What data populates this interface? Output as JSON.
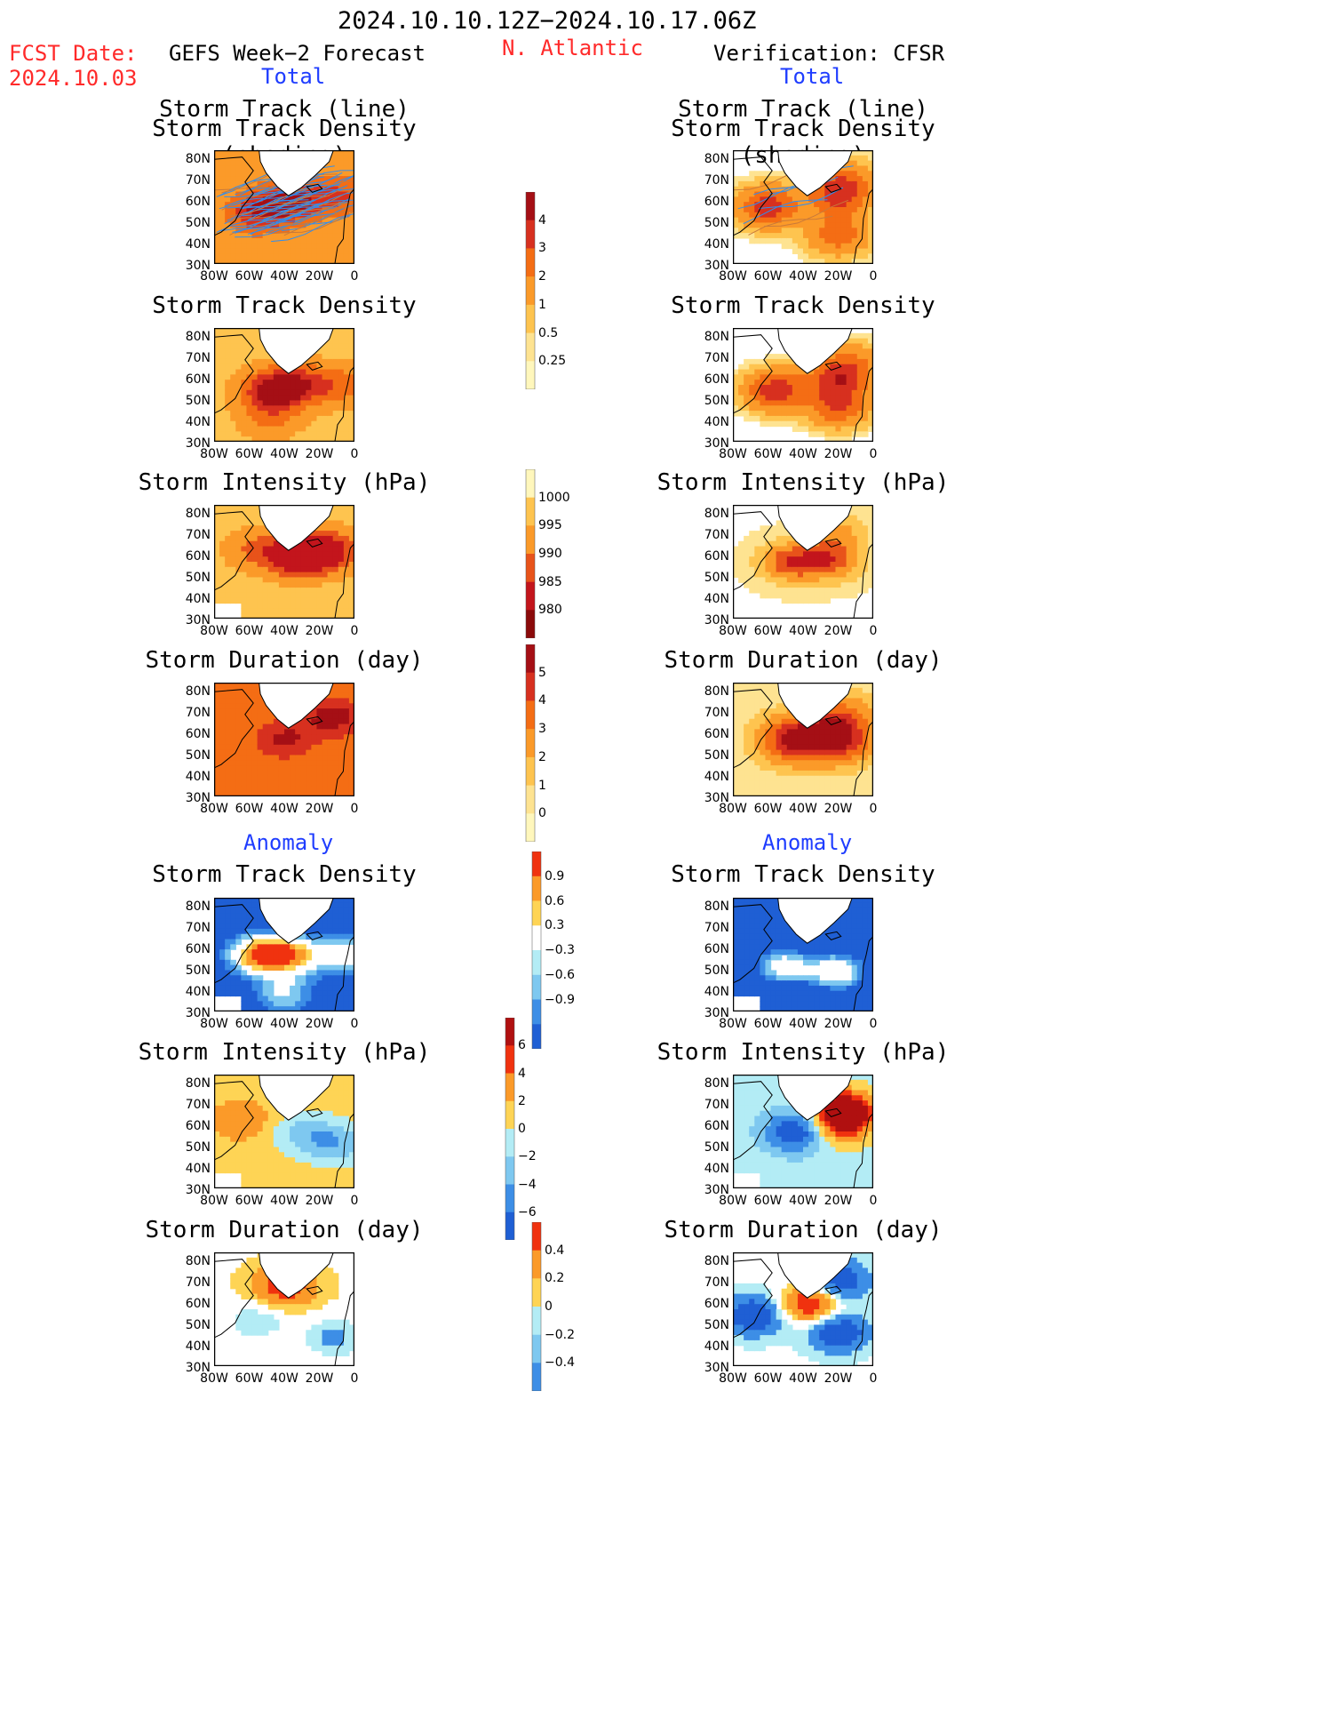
{
  "header": {
    "period": "2024.10.10.12Z−2024.10.17.06Z",
    "fcst_label": "FCST Date:",
    "fcst_date": "2024.10.03",
    "left_model": "GEFS Week−2 Forecast",
    "region": "N. Atlantic",
    "right_model": "Verification: CFSR",
    "left_total": "Total",
    "right_total": "Total",
    "left_anomaly": "Anomaly",
    "right_anomaly": "Anomaly"
  },
  "axes": {
    "lat_ticks": [
      "80N",
      "70N",
      "60N",
      "50N",
      "40N",
      "30N"
    ],
    "lon_ticks": [
      "80W",
      "60W",
      "40W",
      "20W",
      "0"
    ]
  },
  "panels": {
    "left": [
      {
        "title1": "Storm Track (line)",
        "title2": "Storm Track Density (shading)"
      },
      {
        "title1": "Storm Track Density"
      },
      {
        "title1": "Storm Intensity (hPa)"
      },
      {
        "title1": "Storm Duration (day)"
      },
      {
        "title1": "Storm Track Density"
      },
      {
        "title1": "Storm Intensity (hPa)"
      },
      {
        "title1": "Storm Duration (day)"
      }
    ],
    "right": [
      {
        "title1": "Storm Track (line)",
        "title2": "Storm Track Density (shading)"
      },
      {
        "title1": "Storm Track Density"
      },
      {
        "title1": "Storm Intensity (hPa)"
      },
      {
        "title1": "Storm Duration (day)"
      },
      {
        "title1": "Storm Track Density"
      },
      {
        "title1": "Storm Intensity (hPa)"
      },
      {
        "title1": "Storm Duration (day)"
      }
    ]
  },
  "colorbars": [
    {
      "labels": [
        "4",
        "3",
        "2",
        "1",
        "0.5",
        "0.25"
      ],
      "colors": [
        "#a50f15",
        "#d7301f",
        "#f46d14",
        "#fb9a29",
        "#fec44f",
        "#fee391",
        "#fff7bc"
      ]
    },
    {
      "labels": [
        "1000",
        "995",
        "990",
        "985",
        "980"
      ],
      "colors": [
        "#fff7bc",
        "#fec44f",
        "#fb9a29",
        "#e8531a",
        "#c3151c",
        "#8b0a0a"
      ]
    },
    {
      "labels": [
        "5",
        "4",
        "3",
        "2",
        "1",
        "0"
      ],
      "colors": [
        "#a50f15",
        "#d7301f",
        "#f46d14",
        "#fb9a29",
        "#fec44f",
        "#fee391",
        "#fff7bc"
      ]
    },
    {
      "labels": [
        "0.9",
        "0.6",
        "0.3",
        "−0.3",
        "−0.6",
        "−0.9"
      ],
      "colors": [
        "#f0320f",
        "#fb9a29",
        "#fed455",
        "#ffffff",
        "#b3ecf5",
        "#7ec8f0",
        "#3d8ee6",
        "#1f5fd4"
      ]
    },
    {
      "labels": [
        "6",
        "4",
        "2",
        "0",
        "−2",
        "−4",
        "−6"
      ],
      "colors": [
        "#b01010",
        "#f0320f",
        "#fb9a29",
        "#fed455",
        "#b3ecf5",
        "#7ec8f0",
        "#3d8ee6",
        "#1f5fd4"
      ]
    },
    {
      "labels": [
        "0.4",
        "0.2",
        "0",
        "−0.2",
        "−0.4"
      ],
      "colors": [
        "#f0320f",
        "#fb9a29",
        "#fed455",
        "#b3ecf5",
        "#7ec8f0",
        "#3d8ee6"
      ]
    }
  ],
  "fields": {
    "L0": {
      "ctr": [
        [
          0.55,
          0.45,
          3.2
        ],
        [
          0.3,
          0.55,
          2.6
        ],
        [
          0.9,
          0.4,
          1.8
        ]
      ],
      "base": 1.2,
      "pal": "seq"
    },
    "R0": {
      "ctr": [
        [
          0.25,
          0.5,
          3.5
        ],
        [
          0.75,
          0.4,
          3.0
        ],
        [
          0.75,
          0.75,
          2.5
        ],
        [
          0.8,
          0.25,
          1.5
        ]
      ],
      "base": 0.1,
      "pal": "seq"
    },
    "L1": {
      "ctr": [
        [
          0.4,
          0.55,
          3.4
        ],
        [
          0.6,
          0.5,
          2.6
        ],
        [
          0.9,
          0.5,
          1.8
        ],
        [
          0.4,
          0.8,
          1.4
        ]
      ],
      "base": 0.6,
      "pal": "seq"
    },
    "R1": {
      "ctr": [
        [
          0.3,
          0.55,
          3.6
        ],
        [
          0.75,
          0.45,
          3.0
        ],
        [
          0.75,
          0.7,
          2.8
        ],
        [
          0.85,
          0.3,
          1.6
        ]
      ],
      "base": 0.05,
      "pal": "seq"
    },
    "L2": {
      "ctr": [
        [
          0.6,
          0.45,
          3.5
        ],
        [
          0.8,
          0.4,
          3.0
        ],
        [
          0.3,
          0.4,
          1.5
        ]
      ],
      "base": 1.6,
      "pal": "int"
    },
    "R2": {
      "ctr": [
        [
          0.4,
          0.5,
          3.5
        ],
        [
          0.7,
          0.5,
          3.0
        ],
        [
          0.75,
          0.25,
          2.0
        ]
      ],
      "base": 0.2,
      "pal": "int"
    },
    "L3": {
      "ctr": [
        [
          0.5,
          0.5,
          2.2
        ],
        [
          0.85,
          0.3,
          2.6
        ]
      ],
      "base": 2.0,
      "pal": "seq"
    },
    "R3": {
      "ctr": [
        [
          0.45,
          0.5,
          4.5
        ],
        [
          0.75,
          0.5,
          4.0
        ],
        [
          0.75,
          0.3,
          2.0
        ]
      ],
      "base": 0.3,
      "pal": "seq"
    },
    "L4": {
      "ctr": [
        [
          0.3,
          0.5,
          2.2
        ],
        [
          0.55,
          0.5,
          2.0
        ],
        [
          0.95,
          0.5,
          1.6
        ],
        [
          0.5,
          0.85,
          1.2
        ]
      ],
      "base": -1.5,
      "pal": "div"
    },
    "R4": {
      "ctr": [
        [
          0.35,
          0.6,
          2.0
        ],
        [
          0.75,
          0.65,
          2.2
        ]
      ],
      "base": -2.0,
      "pal": "div"
    },
    "L5": {
      "ctr": [
        [
          0.2,
          0.4,
          1.5
        ],
        [
          0.85,
          0.6,
          -2.5
        ],
        [
          0.6,
          0.5,
          -1.5
        ]
      ],
      "base": 0.5,
      "pal": "div6"
    },
    "R5": {
      "ctr": [
        [
          0.45,
          0.5,
          -4.0
        ],
        [
          0.75,
          0.45,
          3.0
        ],
        [
          0.8,
          0.3,
          4.5
        ]
      ],
      "base": -0.5,
      "pal": "div6"
    },
    "L6": {
      "ctr": [
        [
          0.5,
          0.3,
          2.5
        ],
        [
          0.85,
          0.75,
          -1.5
        ],
        [
          0.3,
          0.6,
          -1.2
        ]
      ],
      "base": 0.3,
      "pal": "div4"
    },
    "R6": {
      "ctr": [
        [
          0.55,
          0.45,
          3.5
        ],
        [
          0.75,
          0.7,
          -3.0
        ],
        [
          0.75,
          0.25,
          -3.0
        ],
        [
          0.15,
          0.55,
          -3.0
        ]
      ],
      "base": -0.2,
      "pal": "div4"
    }
  }
}
